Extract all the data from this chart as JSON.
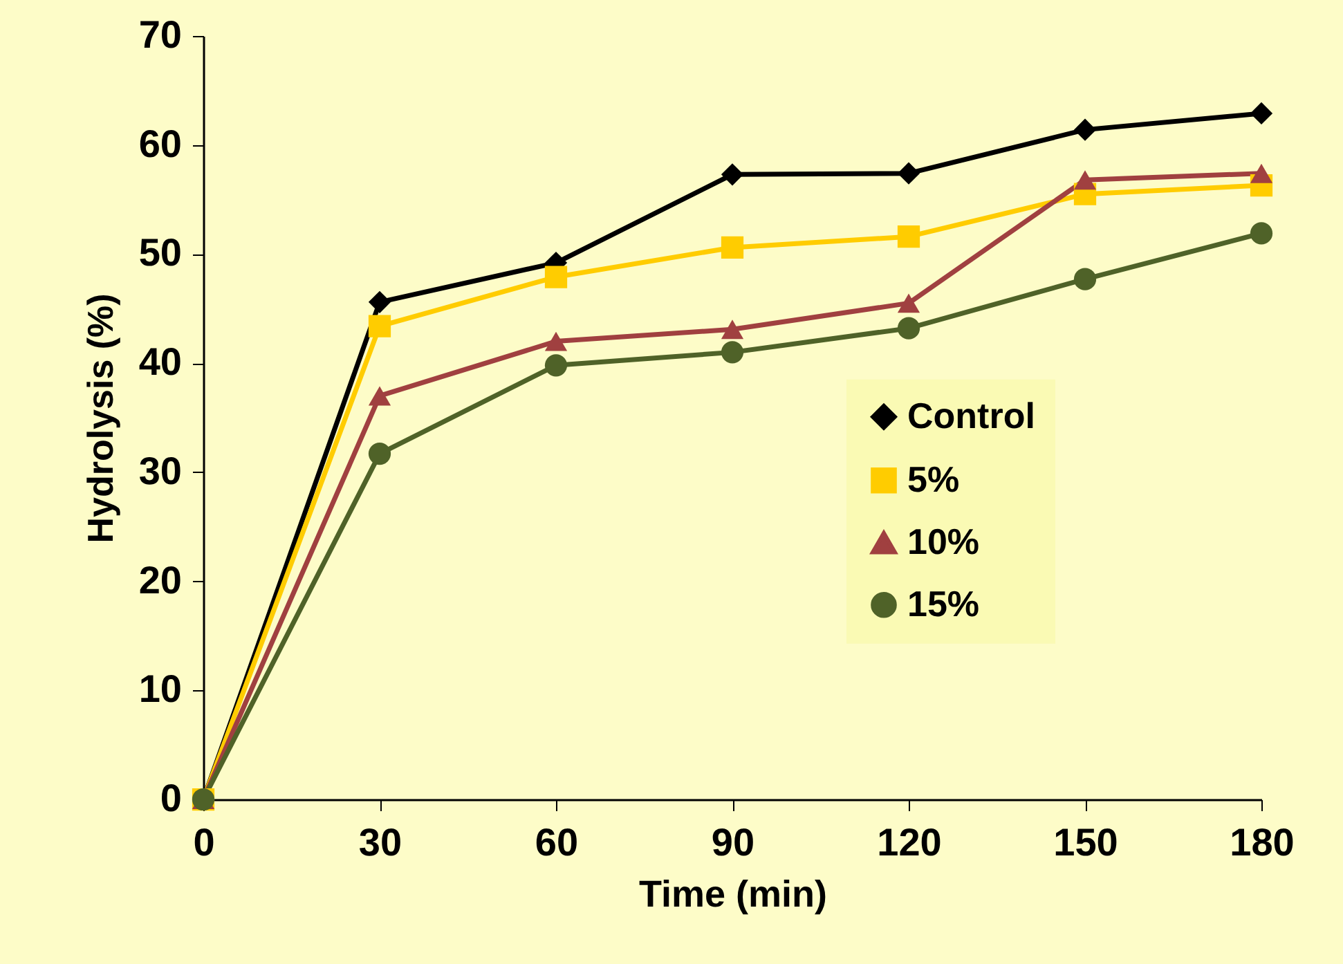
{
  "chart_data": {
    "type": "line",
    "xlabel": "Time (min)",
    "ylabel": "Hydrolysis (%)",
    "x": [
      0,
      30,
      60,
      90,
      120,
      150,
      180
    ],
    "xlim": [
      0,
      180
    ],
    "xticks": [
      0,
      30,
      60,
      90,
      120,
      150,
      180
    ],
    "ylim": [
      0,
      70
    ],
    "yticks": [
      0,
      10,
      20,
      30,
      40,
      50,
      60,
      70
    ],
    "grid": false,
    "legend": "right",
    "series": [
      {
        "name": "Control",
        "color": "#000000",
        "marker": "diamond",
        "values": [
          0,
          45.6,
          49.2,
          57.3,
          57.4,
          61.4,
          62.9
        ]
      },
      {
        "name": "5%",
        "color": "#ffcc00",
        "marker": "square",
        "values": [
          0,
          43.4,
          47.9,
          50.6,
          51.6,
          55.5,
          56.3
        ]
      },
      {
        "name": "10%",
        "color": "#a04040",
        "marker": "triangle",
        "values": [
          0,
          37.0,
          42.0,
          43.1,
          45.5,
          56.8,
          57.4
        ]
      },
      {
        "name": "15%",
        "color": "#4f6228",
        "marker": "circle",
        "values": [
          0,
          31.7,
          39.8,
          41.0,
          43.2,
          47.7,
          51.9
        ]
      }
    ]
  }
}
